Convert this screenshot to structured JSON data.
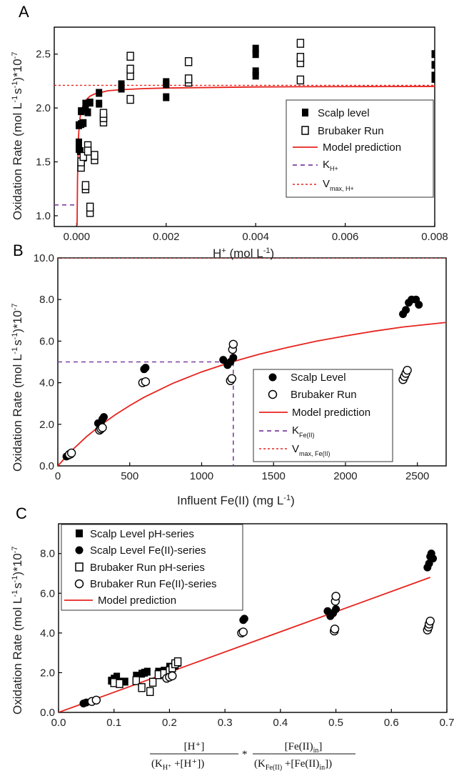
{
  "chart_data": [
    {
      "panel": "A",
      "type": "scatter",
      "xlabel": "H+ (mol L-1)",
      "ylabel": "Oxidation Rate (mol L-1 s-1)*10-7",
      "xlim": [
        -0.0005,
        0.008
      ],
      "ylim": [
        0.9,
        2.75
      ],
      "xticks": [
        "0.000",
        "0.002",
        "0.004",
        "0.006",
        "0.008"
      ],
      "yticks": [
        "1.0",
        "1.5",
        "2.0",
        "2.5"
      ],
      "legend_position": "right",
      "legend": [
        "Scalp level",
        "Brubaker Run",
        "Model prediction",
        "KH+",
        "Vmax, H+"
      ],
      "series": [
        {
          "name": "Scalp level",
          "marker": "filled-square",
          "x": [
            5e-05,
            5e-05,
            5e-05,
            8e-05,
            0.0001,
            0.0001,
            0.00015,
            0.00015,
            0.0002,
            0.0002,
            0.00025,
            0.0003,
            0.0003,
            0.0005,
            0.0005,
            0.001,
            0.001,
            0.002,
            0.002,
            0.002,
            0.004,
            0.004,
            0.004,
            0.004,
            0.008,
            0.008,
            0.008,
            0.008
          ],
          "y": [
            1.62,
            1.68,
            1.84,
            1.6,
            1.85,
            1.97,
            1.54,
            1.86,
            1.98,
            2.04,
            1.96,
            2.05,
            2.05,
            2.14,
            2.04,
            2.22,
            2.18,
            2.1,
            2.22,
            2.24,
            2.55,
            2.5,
            2.34,
            2.3,
            2.5,
            2.4,
            2.3,
            2.27
          ]
        },
        {
          "name": "Brubaker Run",
          "marker": "open-square",
          "x": [
            0.0001,
            0.0001,
            0.00015,
            0.0002,
            0.0002,
            0.00025,
            0.00025,
            0.0004,
            0.0004,
            0.0006,
            0.0006,
            0.0006,
            0.0012,
            0.0012,
            0.0012,
            0.0012,
            0.0025,
            0.0025,
            0.0025,
            0.005,
            0.005,
            0.005,
            0.005,
            0.0003,
            0.0003
          ],
          "y": [
            1.45,
            1.5,
            1.55,
            1.25,
            1.28,
            1.65,
            1.6,
            1.52,
            1.56,
            1.87,
            1.91,
            1.95,
            2.08,
            2.3,
            2.36,
            2.48,
            2.24,
            2.27,
            2.43,
            2.26,
            2.42,
            2.47,
            2.6,
            1.03,
            1.08
          ]
        },
        {
          "name": "Model prediction",
          "type": "line",
          "x": [
            1e-05,
            2e-05,
            4e-05,
            6e-05,
            8e-05,
            0.0001,
            0.00015,
            0.0002,
            0.0003,
            0.0004,
            0.0005,
            0.0007,
            0.001,
            0.0015,
            0.002,
            0.003,
            0.004,
            0.005,
            0.006,
            0.007,
            0.008
          ],
          "y": [
            0.91,
            1.35,
            1.72,
            1.85,
            1.92,
            1.97,
            2.03,
            2.07,
            2.11,
            2.13,
            2.14,
            2.16,
            2.17,
            2.18,
            2.185,
            2.19,
            2.195,
            2.197,
            2.198,
            2.199,
            2.2
          ]
        },
        {
          "name": "KH+",
          "type": "dashed-line",
          "y": 1.1,
          "x_end": 1e-05
        },
        {
          "name": "Vmax, H+",
          "type": "dotted-line",
          "y": 2.21
        }
      ]
    },
    {
      "panel": "B",
      "type": "scatter",
      "xlabel": "Influent  Fe(II) (mg L-1)",
      "ylabel": "Oxidation Rate (mol L-1 s-1)*10-7",
      "xlim": [
        0,
        2700
      ],
      "ylim": [
        0,
        10.0
      ],
      "xticks": [
        "0",
        "500",
        "1000",
        "1500",
        "2000",
        "2500"
      ],
      "yticks": [
        "0.0",
        "2.0",
        "4.0",
        "6.0",
        "8.0",
        "10.0"
      ],
      "legend_position": "bottom-right",
      "legend": [
        "Scalp Level",
        "Brubaker Run",
        "Model prediction",
        "KFe(II)",
        "Vmax, Fe(II)"
      ],
      "series": [
        {
          "name": "Scalp Level",
          "marker": "filled-circle",
          "x": [
            60,
            75,
            90,
            280,
            300,
            310,
            320,
            600,
            610,
            1150,
            1180,
            1200,
            1220,
            2400,
            2420,
            2440,
            2460,
            2490,
            2510
          ],
          "y": [
            0.45,
            0.5,
            0.55,
            2.05,
            2.1,
            2.25,
            2.35,
            4.65,
            4.72,
            5.1,
            4.85,
            5.0,
            5.2,
            7.3,
            7.5,
            7.85,
            8.0,
            8.0,
            7.75
          ]
        },
        {
          "name": "Brubaker Run",
          "marker": "open-circle",
          "x": [
            80,
            95,
            290,
            300,
            310,
            590,
            610,
            1200,
            1210,
            1215,
            1220,
            2400,
            2410,
            2420,
            2430
          ],
          "y": [
            0.55,
            0.62,
            1.72,
            1.78,
            1.84,
            4.0,
            4.05,
            4.1,
            4.2,
            5.6,
            5.85,
            4.15,
            4.3,
            4.45,
            4.6
          ]
        },
        {
          "name": "Model prediction",
          "type": "line",
          "x": [
            0,
            100,
            200,
            300,
            400,
            500,
            600,
            800,
            1000,
            1200,
            1400,
            1600,
            1800,
            2000,
            2200,
            2400,
            2700
          ],
          "y": [
            0,
            0.76,
            1.41,
            1.97,
            2.46,
            2.9,
            3.3,
            3.97,
            4.52,
            4.98,
            5.37,
            5.7,
            6.0,
            6.25,
            6.48,
            6.68,
            6.9
          ]
        },
        {
          "name": "KFe(II)",
          "type": "dashed-line",
          "y": 5.0,
          "x": 1220
        },
        {
          "name": "Vmax, Fe(II)",
          "type": "dotted-line",
          "y": 10.0
        }
      ]
    },
    {
      "panel": "C",
      "type": "scatter",
      "xlabel": "[H+]/(KH+ + [H+]) * [Fe(II)in]/(KFe(II) + [Fe(II)in])",
      "ylabel": "Oxidation Rate (mol L-1 s-1)*10-7",
      "xlim": [
        0,
        0.7
      ],
      "ylim": [
        0,
        9.5
      ],
      "xticks": [
        "0.0",
        "0.1",
        "0.2",
        "0.3",
        "0.4",
        "0.5",
        "0.6",
        "0.7"
      ],
      "yticks": [
        "0.0",
        "2.0",
        "4.0",
        "6.0",
        "8.0"
      ],
      "legend_position": "top-left",
      "legend": [
        "Scalp Level pH-series",
        "Scalp Level Fe(II)-series",
        "Brubaker Run pH-series",
        "Brubaker Run Fe(II)-series",
        "Model prediction"
      ],
      "series": [
        {
          "name": "Scalp Level pH-series",
          "marker": "filled-square",
          "x": [
            0.095,
            0.1,
            0.105,
            0.11,
            0.12,
            0.14,
            0.15,
            0.155,
            0.16,
            0.18,
            0.19,
            0.2,
            0.2,
            0.21,
            0.215
          ],
          "y": [
            1.6,
            1.7,
            1.8,
            1.55,
            1.55,
            1.85,
            1.95,
            2.0,
            2.05,
            2.05,
            2.1,
            2.2,
            2.3,
            2.35,
            2.5
          ]
        },
        {
          "name": "Scalp Level Fe(II)-series",
          "marker": "filled-circle",
          "x": [
            0.045,
            0.05,
            0.333,
            0.335,
            0.485,
            0.49,
            0.495,
            0.5,
            0.665,
            0.668,
            0.67,
            0.672,
            0.675
          ],
          "y": [
            0.45,
            0.5,
            4.65,
            4.72,
            5.1,
            4.85,
            5.0,
            5.2,
            7.3,
            7.5,
            7.85,
            8.0,
            7.75
          ]
        },
        {
          "name": "Brubaker Run pH-series",
          "marker": "open-square",
          "x": [
            0.1,
            0.11,
            0.14,
            0.15,
            0.165,
            0.17,
            0.18,
            0.19,
            0.2,
            0.205,
            0.21,
            0.215
          ],
          "y": [
            1.5,
            1.45,
            1.6,
            1.25,
            1.05,
            1.52,
            1.9,
            1.95,
            2.1,
            2.25,
            2.45,
            2.55
          ]
        },
        {
          "name": "Brubaker Run Fe(II)-series",
          "marker": "open-circle",
          "x": [
            0.06,
            0.068,
            0.195,
            0.2,
            0.205,
            0.33,
            0.333,
            0.497,
            0.498,
            0.499,
            0.5,
            0.665,
            0.667,
            0.668,
            0.67
          ],
          "y": [
            0.55,
            0.62,
            1.72,
            1.78,
            1.84,
            4.0,
            4.05,
            4.1,
            4.2,
            5.6,
            5.85,
            4.15,
            4.3,
            4.45,
            4.6
          ]
        },
        {
          "name": "Model prediction",
          "type": "line",
          "x": [
            0,
            0.67
          ],
          "y": [
            0,
            6.8
          ]
        }
      ]
    }
  ],
  "labels": {
    "panel_a": "A",
    "panel_b": "B",
    "panel_c": "C",
    "a_legend": [
      "Scalp level",
      "Brubaker Run",
      "Model prediction",
      "K",
      "V"
    ],
    "a_legend_sub": [
      "",
      "",
      "",
      "H+",
      "max, H+"
    ],
    "b_legend": [
      "Scalp Level",
      "Brubaker Run",
      "Model prediction",
      "K",
      "V"
    ],
    "b_legend_sub": [
      "",
      "",
      "",
      "Fe(II)",
      "max, Fe(II)"
    ],
    "c_legend": [
      "Scalp Level pH-series",
      "Scalp Level Fe(II)-series",
      "Brubaker Run pH-series",
      "Brubaker Run Fe(II)-series",
      "Model prediction"
    ],
    "ylabel_main": "Oxidation Rate (mol L",
    "ylabel_sup1": "-1",
    "ylabel_mid": "s",
    "ylabel_sup2": "-1",
    "ylabel_end": ")*10",
    "ylabel_sup3": "-7",
    "a_xlabel_main": "H",
    "a_xlabel_sup": "+",
    "a_xlabel_end": " (mol L",
    "a_xlabel_sup2": "-1",
    "a_xlabel_close": ")",
    "b_xlabel_main": "Influent  Fe(II) (mg L",
    "b_xlabel_sup": "-1",
    "b_xlabel_close": ")",
    "c_frac1_num": "[H⁺]",
    "c_frac1_den_a": "(K",
    "c_frac1_den_sub": "H⁺",
    "c_frac1_den_b": " +[H⁺])",
    "c_mult": "*",
    "c_frac2_num": "[Fe(II)",
    "c_frac2_num_sub": "in",
    "c_frac2_num_end": "]",
    "c_frac2_den_a": "(K",
    "c_frac2_den_sub": "Fe(II)",
    "c_frac2_den_b": " +[Fe(II)",
    "c_frac2_den_sub2": "in",
    "c_frac2_den_c": "])"
  },
  "colors": {
    "model": "#e8231e",
    "k_line": "#7b3fa0",
    "vmax_line": "#e8231e",
    "marker": "#000000"
  }
}
